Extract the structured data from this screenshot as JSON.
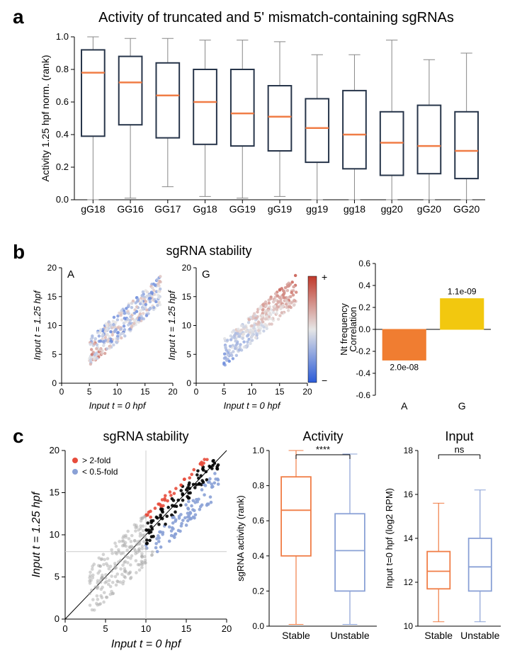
{
  "panelA": {
    "label": "a",
    "title": "Activity of truncated and 5' mismatch-containing sgRNAs",
    "ylabel": "Activity 1.25 hpf norm. (rank)",
    "ylim": [
      0,
      1.0
    ],
    "ytick_step": 0.2,
    "categories": [
      "gG18",
      "GG16",
      "GG17",
      "Gg18",
      "GG19",
      "gG19",
      "gg19",
      "gg18",
      "gg20",
      "gG20",
      "GG20"
    ],
    "boxes": [
      {
        "q1": 0.39,
        "med": 0.78,
        "q3": 0.92,
        "lo": 0.0,
        "hi": 1.0
      },
      {
        "q1": 0.46,
        "med": 0.72,
        "q3": 0.88,
        "lo": 0.01,
        "hi": 0.99
      },
      {
        "q1": 0.38,
        "med": 0.64,
        "q3": 0.84,
        "lo": 0.08,
        "hi": 0.99
      },
      {
        "q1": 0.34,
        "med": 0.6,
        "q3": 0.8,
        "lo": 0.02,
        "hi": 0.98
      },
      {
        "q1": 0.33,
        "med": 0.53,
        "q3": 0.8,
        "lo": 0.01,
        "hi": 0.98
      },
      {
        "q1": 0.3,
        "med": 0.51,
        "q3": 0.7,
        "lo": 0.02,
        "hi": 0.97
      },
      {
        "q1": 0.23,
        "med": 0.44,
        "q3": 0.62,
        "lo": 0.0,
        "hi": 0.89
      },
      {
        "q1": 0.19,
        "med": 0.4,
        "q3": 0.67,
        "lo": 0.0,
        "hi": 0.89
      },
      {
        "q1": 0.15,
        "med": 0.35,
        "q3": 0.54,
        "lo": 0.0,
        "hi": 0.98
      },
      {
        "q1": 0.16,
        "med": 0.33,
        "q3": 0.58,
        "lo": 0.0,
        "hi": 0.86
      },
      {
        "q1": 0.13,
        "med": 0.3,
        "q3": 0.54,
        "lo": 0.0,
        "hi": 0.9
      }
    ],
    "box_color": "#27354a",
    "median_color": "#f07d46",
    "whisker_color": "#888888",
    "background": "#ffffff"
  },
  "panelB": {
    "label": "b",
    "title": "sgRNA stability",
    "scatter": {
      "xlabel": "Input t = 0 hpf",
      "ylabel": "Input t = 1.25 hpf",
      "xlim": [
        0,
        20
      ],
      "ylim": [
        0,
        20
      ],
      "xtick_step": 5,
      "ytick_step": 5,
      "subtitles": [
        "A",
        "G"
      ],
      "colormap": {
        "low": "#2b5bd7",
        "mid": "#e6e6e6",
        "high": "#c0392b"
      },
      "colorbar_labels": {
        "top": "+",
        "bottom": "−"
      }
    },
    "barchart": {
      "ylabel": "Nt frequency\nCorrelation",
      "ylim": [
        -0.6,
        0.6
      ],
      "ytick_step": 0.2,
      "bars": [
        {
          "cat": "A",
          "val": -0.28,
          "color": "#f07d31",
          "annot": "2.0e-08",
          "annot_pos": "below"
        },
        {
          "cat": "G",
          "val": 0.28,
          "color": "#f2c80f",
          "annot": "1.1e-09",
          "annot_pos": "above"
        }
      ]
    }
  },
  "panelC": {
    "label": "c",
    "scatter": {
      "title": "sgRNA stability",
      "xlabel": "Input t = 0 hpf",
      "ylabel": "Input t = 1.25 hpf",
      "xlim": [
        0,
        20
      ],
      "ylim": [
        0,
        20
      ],
      "xtick_step": 5,
      "ytick_step": 5,
      "legend": [
        {
          "label": "> 2-fold",
          "color": "#e74c3c"
        },
        {
          "label": "< 0.5-fold",
          "color": "#8aa1d6"
        }
      ],
      "ref_x": 10,
      "ref_y": 8,
      "point_colors": {
        "up": "#e74c3c",
        "down": "#8aa1d6",
        "mid": "#000000",
        "out": "#aaaaaa"
      }
    },
    "activity_box": {
      "title": "Activity",
      "ylabel": "sgRNA activity (rank)",
      "ylim": [
        0,
        1.0
      ],
      "ytick_step": 0.2,
      "categories": [
        "Stable",
        "Unstable"
      ],
      "boxes": [
        {
          "q1": 0.4,
          "med": 0.66,
          "q3": 0.85,
          "lo": 0.01,
          "hi": 1.0,
          "color": "#f07d46"
        },
        {
          "q1": 0.2,
          "med": 0.43,
          "q3": 0.64,
          "lo": 0.01,
          "hi": 0.98,
          "color": "#8aa1d6"
        }
      ],
      "sig_label": "****"
    },
    "input_box": {
      "title": "Input",
      "ylabel": "Input t=0 hpf (log2 RPM)",
      "ylim": [
        10,
        18
      ],
      "ytick_step": 2,
      "categories": [
        "Stable",
        "Unstable"
      ],
      "boxes": [
        {
          "q1": 11.7,
          "med": 12.5,
          "q3": 13.4,
          "lo": 10.2,
          "hi": 15.6,
          "color": "#f07d46"
        },
        {
          "q1": 11.6,
          "med": 12.7,
          "q3": 14.0,
          "lo": 10.2,
          "hi": 16.2,
          "color": "#8aa1d6"
        }
      ],
      "sig_label": "ns"
    }
  }
}
